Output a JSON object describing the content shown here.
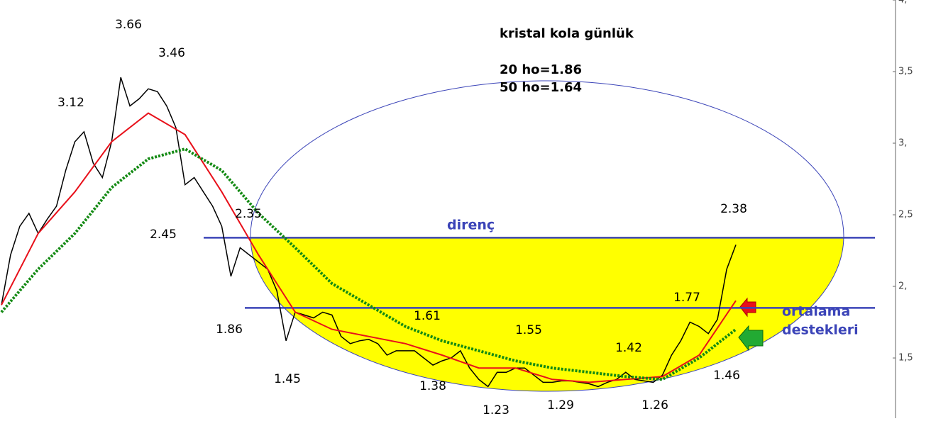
{
  "chart_data": {
    "type": "line",
    "title": "kristal kola günlük",
    "subtitle": [
      "20 ho=1.86",
      "50 ho=1.64"
    ],
    "ylim": [
      0.926,
      4.0
    ],
    "yticks": [
      {
        "value": 1.5,
        "label": "1,5"
      },
      {
        "value": 2,
        "label": "2,"
      },
      {
        "value": 2.5,
        "label": "2,5"
      },
      {
        "value": 3,
        "label": "3,"
      },
      {
        "value": 3.5,
        "label": "3,5"
      },
      {
        "value": 4,
        "label": "4,"
      }
    ],
    "series": [
      {
        "color": "#000000",
        "values": [
          1.87,
          2.22,
          2.42,
          2.51,
          2.37,
          2.47,
          2.56,
          2.81,
          3.01,
          3.08,
          2.86,
          2.76,
          3.01,
          3.46,
          3.26,
          3.31,
          3.38,
          3.36,
          3.26,
          3.11,
          2.71,
          2.76,
          2.66,
          2.56,
          2.42,
          2.07,
          2.27,
          2.22,
          2.17,
          2.12,
          1.97,
          1.62,
          1.82,
          1.8,
          1.78,
          1.82,
          1.8,
          1.65,
          1.6,
          1.62,
          1.63,
          1.6,
          1.52,
          1.55,
          1.55,
          1.55,
          1.5,
          1.45,
          1.48,
          1.5,
          1.55,
          1.43,
          1.35,
          1.3,
          1.4,
          1.4,
          1.43,
          1.43,
          1.38,
          1.33,
          1.33,
          1.34,
          1.34,
          1.33,
          1.32,
          1.3,
          1.33,
          1.35,
          1.4,
          1.35,
          1.34,
          1.33,
          1.38,
          1.52,
          1.62,
          1.75,
          1.72,
          1.67,
          1.77,
          2.12,
          2.29
        ]
      },
      {
        "color": "#e8101a",
        "values": [
          1.87,
          2.37,
          2.66,
          3.01,
          3.21,
          3.06,
          2.66,
          2.22,
          1.82,
          1.7,
          1.65,
          1.6,
          1.52,
          1.43,
          1.43,
          1.35,
          1.33,
          1.35,
          1.37,
          1.52,
          1.9
        ]
      },
      {
        "color": "#138a13",
        "dotted": true,
        "values": [
          1.82,
          2.12,
          2.37,
          2.69,
          2.89,
          2.96,
          2.81,
          2.51,
          2.27,
          2.02,
          1.87,
          1.72,
          1.62,
          1.55,
          1.48,
          1.43,
          1.4,
          1.37,
          1.35,
          1.5,
          1.7
        ]
      }
    ],
    "hlines": [
      2.34,
      1.85
    ],
    "hline_color": "#3b44b8",
    "hline_labels": [
      "direnç",
      "ortalama",
      "destekleri"
    ],
    "annotations": [
      "3.66",
      "3.46",
      "3.12",
      "2.45",
      "2.35",
      "1.86",
      "1.45",
      "1.61",
      "1.38",
      "1.23",
      "1.55",
      "1.29",
      "1.42",
      "1.26",
      "1.77",
      "1.46",
      "2.38"
    ]
  }
}
